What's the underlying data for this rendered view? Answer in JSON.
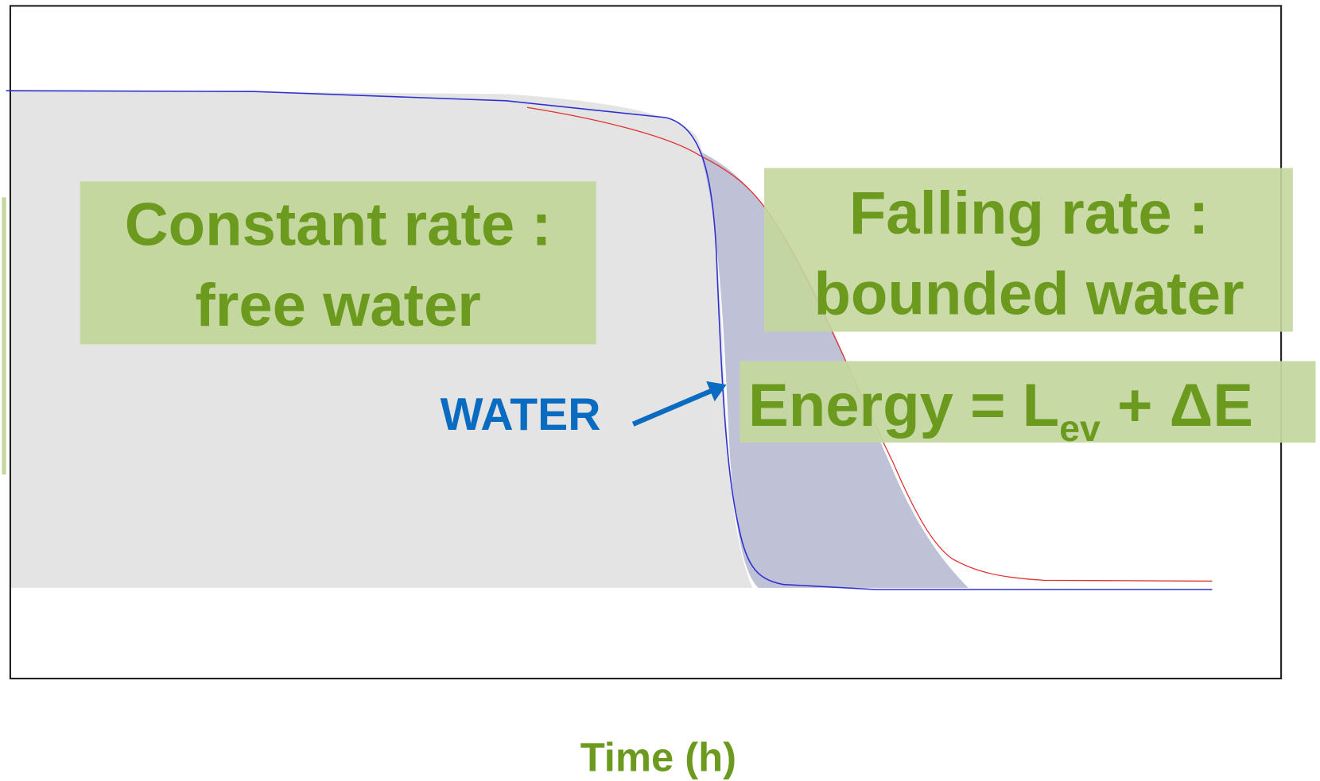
{
  "labels": {
    "constant_rate": "Constant rate :",
    "free_water": "free water",
    "falling_rate": "Falling rate :",
    "bounded_water": "bounded water",
    "energy": "Energy = L",
    "energy_sub": "ev",
    "energy_rest": " + ΔE",
    "water": "WATER",
    "x_axis": "Time (h)"
  }
}
